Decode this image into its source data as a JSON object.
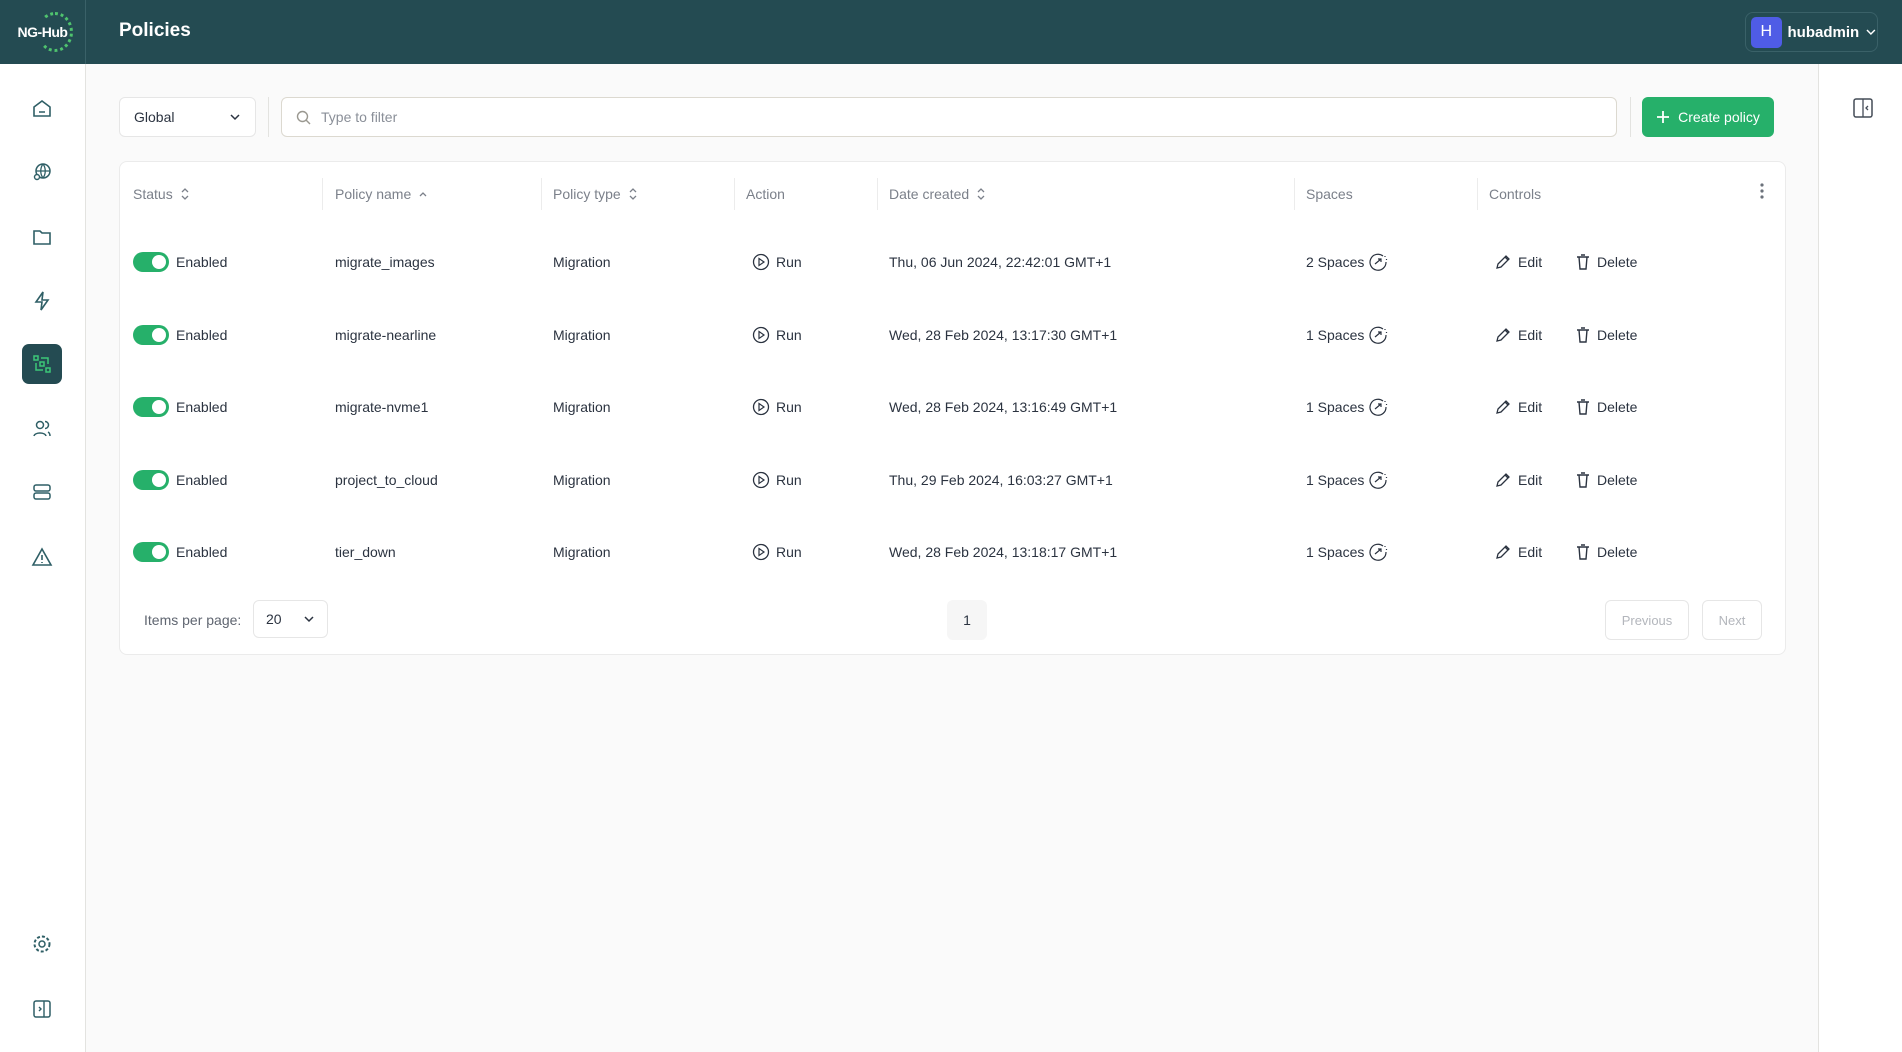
{
  "header": {
    "logo_text": "NG-Hub",
    "title": "Policies",
    "user": {
      "initial": "H",
      "name": "hubadmin"
    }
  },
  "sidebar": {
    "items": [
      {
        "name": "home-icon"
      },
      {
        "name": "globe-search-icon"
      },
      {
        "name": "folder-icon"
      },
      {
        "name": "lightning-icon"
      },
      {
        "name": "policies-icon",
        "active": true
      },
      {
        "name": "users-icon"
      },
      {
        "name": "server-icon"
      },
      {
        "name": "warning-icon"
      }
    ],
    "bottom": [
      {
        "name": "gear-icon"
      },
      {
        "name": "collapse-sidebar-icon"
      }
    ]
  },
  "toolbar": {
    "scope": "Global",
    "search_placeholder": "Type to filter",
    "search_value": "",
    "create_label": "Create policy"
  },
  "table": {
    "columns": [
      "Status",
      "Policy name",
      "Policy type",
      "Action",
      "Date created",
      "Spaces",
      "Controls"
    ],
    "rows": [
      {
        "status": "Enabled",
        "name": "migrate_images",
        "type": "Migration",
        "action": "Run",
        "date": "Thu, 06 Jun 2024, 22:42:01 GMT+1",
        "spaces": "2 Spaces",
        "edit": "Edit",
        "delete": "Delete"
      },
      {
        "status": "Enabled",
        "name": "migrate-nearline",
        "type": "Migration",
        "action": "Run",
        "date": "Wed, 28 Feb 2024, 13:17:30 GMT+1",
        "spaces": "1 Spaces",
        "edit": "Edit",
        "delete": "Delete"
      },
      {
        "status": "Enabled",
        "name": "migrate-nvme1",
        "type": "Migration",
        "action": "Run",
        "date": "Wed, 28 Feb 2024, 13:16:49 GMT+1",
        "spaces": "1 Spaces",
        "edit": "Edit",
        "delete": "Delete"
      },
      {
        "status": "Enabled",
        "name": "project_to_cloud",
        "type": "Migration",
        "action": "Run",
        "date": "Thu, 29 Feb 2024, 16:03:27 GMT+1",
        "spaces": "1 Spaces",
        "edit": "Edit",
        "delete": "Delete"
      },
      {
        "status": "Enabled",
        "name": "tier_down",
        "type": "Migration",
        "action": "Run",
        "date": "Wed, 28 Feb 2024, 13:18:17 GMT+1",
        "spaces": "1 Spaces",
        "edit": "Edit",
        "delete": "Delete"
      }
    ]
  },
  "pagination": {
    "items_label": "Items per page:",
    "per_page": "20",
    "page": "1",
    "previous": "Previous",
    "next": "Next"
  },
  "colors": {
    "header": "#244b52",
    "accent": "#26b06a",
    "avatar": "#4f5ce6"
  }
}
